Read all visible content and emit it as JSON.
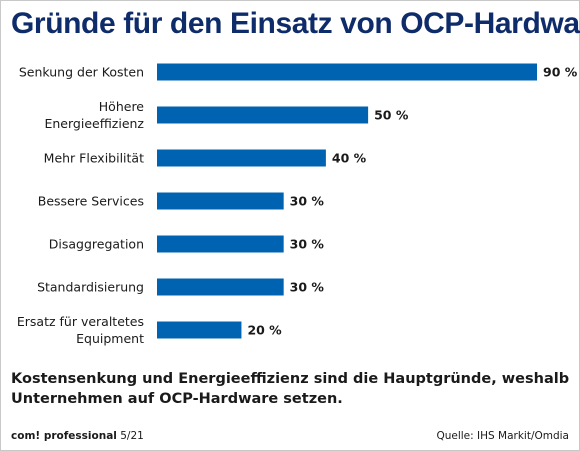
{
  "title": "Gründe für den Einsatz von OCP-Hardware",
  "chart_data": {
    "type": "bar",
    "orientation": "horizontal",
    "categories": [
      [
        "Senkung der Kosten"
      ],
      [
        "Höhere",
        "Energieeffizienz"
      ],
      [
        "Mehr Flexibilität"
      ],
      [
        "Bessere Services"
      ],
      [
        "Disaggregation"
      ],
      [
        "Standardisierung"
      ],
      [
        "Ersatz für veraltetes",
        "Equipment"
      ]
    ],
    "values": [
      90,
      50,
      40,
      30,
      30,
      30,
      20
    ],
    "value_labels": [
      "90 %",
      "50 %",
      "40 %",
      "30 %",
      "30 %",
      "30 %",
      "20 %"
    ],
    "unit": "%",
    "xlim": [
      0,
      90
    ],
    "grid": false,
    "bar_color": "#0063b1"
  },
  "caption": "Kostensenkung und Energieeffizienz sind die Hauptgründe, weshalb Unternehmen auf OCP-Hardware setzen.",
  "footer": {
    "brand": "com! professional",
    "issue": "5/21",
    "source": "Quelle: IHS Markit/Omdia"
  },
  "colors": {
    "title": "#0f2c6a",
    "text": "#1a1a1a"
  }
}
